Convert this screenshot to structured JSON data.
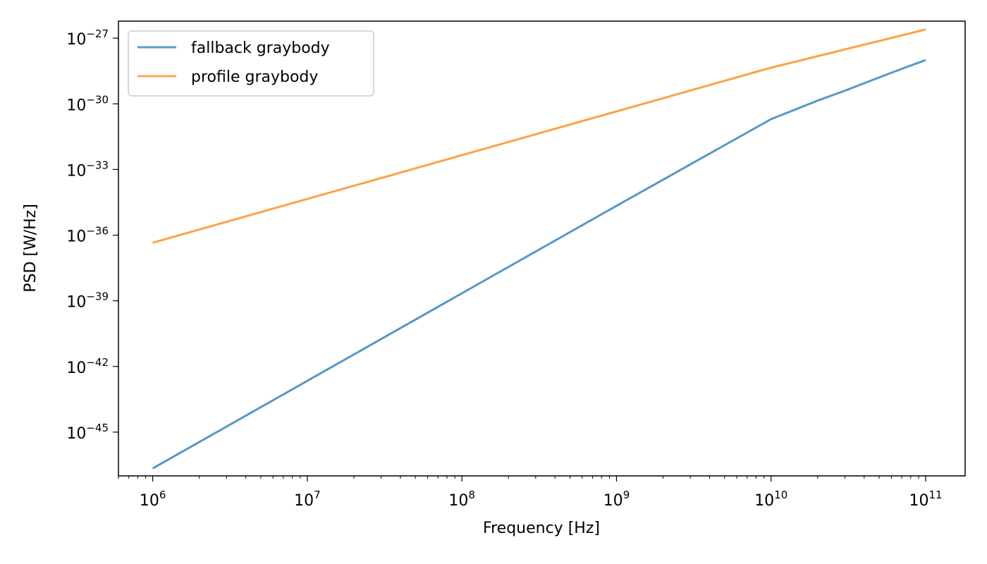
{
  "chart_data": {
    "type": "line",
    "title": "",
    "xlabel": "Frequency [Hz]",
    "ylabel": "PSD [W/Hz]",
    "xscale": "log",
    "yscale": "log",
    "xlim": [
      600000,
      180000000000
    ],
    "ylim": [
      1e-47,
      6e-27
    ],
    "grid": false,
    "legend_position": "top-left",
    "x_ticks": [
      {
        "value": 1000000,
        "base": "10",
        "exp": "6"
      },
      {
        "value": 10000000,
        "base": "10",
        "exp": "7"
      },
      {
        "value": 100000000,
        "base": "10",
        "exp": "8"
      },
      {
        "value": 1000000000,
        "base": "10",
        "exp": "9"
      },
      {
        "value": 10000000000,
        "base": "10",
        "exp": "10"
      },
      {
        "value": 100000000000,
        "base": "10",
        "exp": "11"
      }
    ],
    "y_ticks": [
      {
        "value": 1e-45,
        "base": "10",
        "exp": "−45"
      },
      {
        "value": 1e-42,
        "base": "10",
        "exp": "−42"
      },
      {
        "value": 1e-39,
        "base": "10",
        "exp": "−39"
      },
      {
        "value": 1e-36,
        "base": "10",
        "exp": "−36"
      },
      {
        "value": 1e-33,
        "base": "10",
        "exp": "−33"
      },
      {
        "value": 1e-30,
        "base": "10",
        "exp": "−30"
      },
      {
        "value": 1e-27,
        "base": "10",
        "exp": "−27"
      }
    ],
    "series": [
      {
        "name": "fallback graybody",
        "color": "#4c93c4",
        "x": [
          1000000,
          10000000,
          100000000,
          1000000000,
          10000000000,
          20000000000,
          30000000000,
          50000000000,
          70000000000,
          100000000000
        ],
        "y": [
          2.2e-47,
          2.2e-43,
          2.2e-39,
          2.2e-35,
          2e-31,
          1.4e-30,
          4e-30,
          1.6e-29,
          4e-29,
          1e-28
        ]
      },
      {
        "name": "profile graybody",
        "color": "#fc9d3e",
        "x": [
          1000000,
          10000000,
          100000000,
          1000000000,
          10000000000,
          100000000000
        ],
        "y": [
          4.5e-37,
          4.5e-35,
          4.5e-33,
          4.5e-31,
          4.5e-29,
          2.5e-27
        ]
      }
    ]
  }
}
